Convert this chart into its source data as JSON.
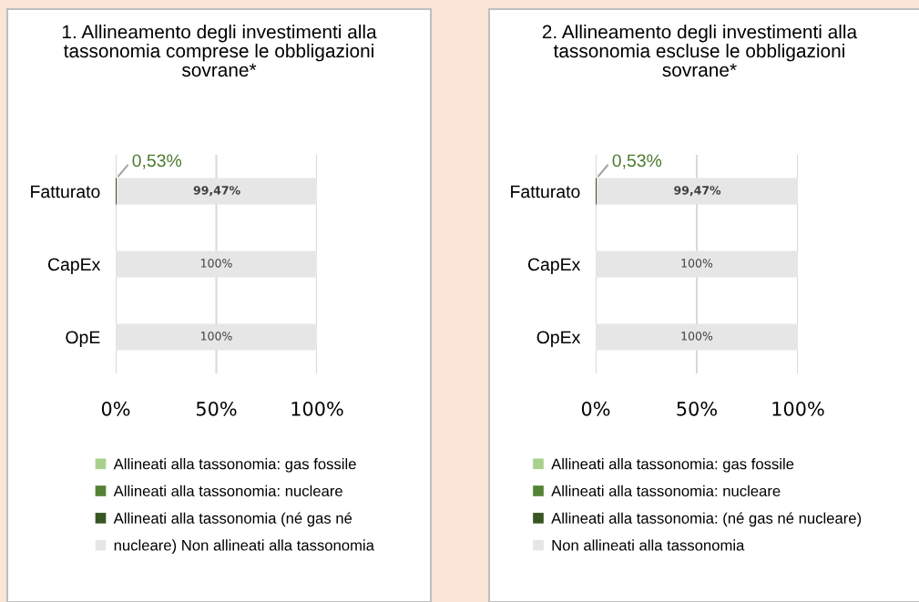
{
  "chart_data": [
    {
      "type": "bar",
      "orientation": "horizontal",
      "stacked": true,
      "title": "1. Allineamento degli investimenti alla\ntassonomia comprese le obbligazioni\nsovrane*",
      "categories": [
        "Fatturato",
        "CapEx",
        "OpE"
      ],
      "xlim": [
        0,
        100
      ],
      "xticks": [
        {
          "value": 0,
          "label": "0%"
        },
        {
          "value": 50,
          "label": "50%"
        },
        {
          "value": 100,
          "label": "100%"
        }
      ],
      "grid": "x",
      "legend": "bottom",
      "series": [
        {
          "name": "Allineati alla tassonomia: gas fossile",
          "color": "#a9d18e",
          "values": [
            0,
            0,
            0
          ]
        },
        {
          "name": "Allineati alla tassonomia: nucleare",
          "color": "#548235",
          "values": [
            0,
            0,
            0
          ]
        },
        {
          "name": "Allineati alla tassonomia (né gas né",
          "color": "#375623",
          "values": [
            0.53,
            0,
            0
          ],
          "value_labels": [
            "0,53%",
            null,
            null
          ]
        },
        {
          "name": "nucleare) Non allineati alla tassonomia",
          "color": "#e7e6e6",
          "values": [
            99.47,
            100,
            100
          ],
          "value_labels": [
            "99,47%",
            "100%",
            "100%"
          ]
        }
      ]
    },
    {
      "type": "bar",
      "orientation": "horizontal",
      "stacked": true,
      "title": "2. Allineamento degli investimenti alla\ntassonomia escluse le obbligazioni\nsovrane*",
      "categories": [
        "Fatturato",
        "CapEx",
        "OpEx"
      ],
      "xlim": [
        0,
        100
      ],
      "xticks": [
        {
          "value": 0,
          "label": "0%"
        },
        {
          "value": 50,
          "label": "50%"
        },
        {
          "value": 100,
          "label": "100%"
        }
      ],
      "grid": "x",
      "legend": "bottom",
      "series": [
        {
          "name": "Allineati alla tassonomia: gas fossile",
          "color": "#a9d18e",
          "values": [
            0,
            0,
            0
          ]
        },
        {
          "name": "Allineati alla tassonomia: nucleare",
          "color": "#548235",
          "values": [
            0,
            0,
            0
          ]
        },
        {
          "name": "Allineati alla tassonomia: (né gas né nucleare)",
          "color": "#375623",
          "values": [
            0.53,
            0,
            0
          ],
          "value_labels": [
            "0,53%",
            null,
            null
          ]
        },
        {
          "name": "Non allineati alla tassonomia",
          "color": "#e7e6e6",
          "values": [
            99.47,
            100,
            100
          ],
          "value_labels": [
            "99,47%",
            "100%",
            "100%"
          ]
        }
      ]
    }
  ]
}
